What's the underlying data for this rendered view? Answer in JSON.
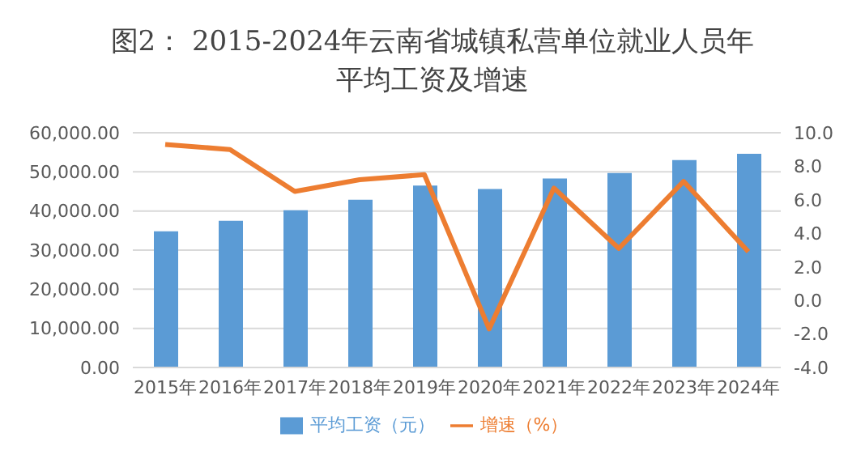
{
  "chart_data": {
    "type": "bar",
    "title": "图2： 2015-2024年云南省城镇私营单位就业人员年平均工资及增速",
    "categories": [
      "2015年",
      "2016年",
      "2017年",
      "2018年",
      "2019年",
      "2020年",
      "2021年",
      "2022年",
      "2023年",
      "2024年"
    ],
    "series": [
      {
        "name": "平均工资（元）",
        "color": "#5b9bd5",
        "values": [
          34800,
          37500,
          40200,
          42900,
          46500,
          45600,
          48300,
          49700,
          53000,
          54600
        ]
      },
      {
        "name": "增速（%）",
        "type": "line",
        "axis": "y2",
        "color": "#ed7d31",
        "values": [
          9.3,
          9.0,
          6.5,
          7.2,
          7.5,
          -1.7,
          6.7,
          3.1,
          7.1,
          2.9
        ]
      }
    ],
    "ylim": [
      0,
      60000
    ],
    "yticks": [
      {
        "value": 0,
        "label": "0.00"
      },
      {
        "value": 10000,
        "label": "10,000.00"
      },
      {
        "value": 20000,
        "label": "20,000.00"
      },
      {
        "value": 30000,
        "label": "30,000.00"
      },
      {
        "value": 40000,
        "label": "40,000.00"
      },
      {
        "value": 50000,
        "label": "50,000.00"
      },
      {
        "value": 60000,
        "label": "60,000.00"
      }
    ],
    "y2lim": [
      -4,
      10
    ],
    "y2ticks": [
      {
        "value": -4,
        "label": "-4.0"
      },
      {
        "value": -2,
        "label": "-2.0"
      },
      {
        "value": 0,
        "label": "0.0"
      },
      {
        "value": 2,
        "label": "2.0"
      },
      {
        "value": 4,
        "label": "4.0"
      },
      {
        "value": 6,
        "label": "6.0"
      },
      {
        "value": 8,
        "label": "8.0"
      },
      {
        "value": 10,
        "label": "10.0"
      }
    ],
    "grid": "y",
    "legend": "bottom",
    "marker": "none"
  }
}
